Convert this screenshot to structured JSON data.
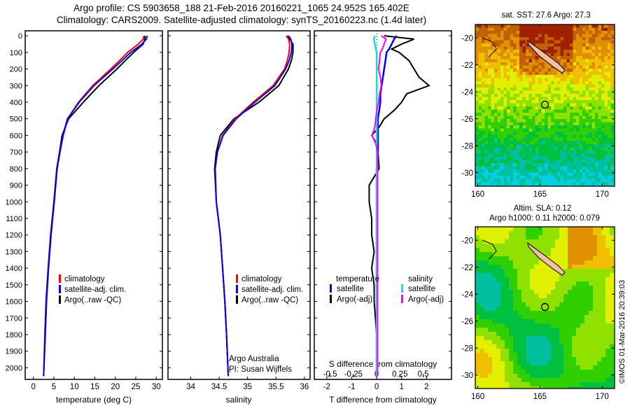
{
  "title_line1": "Argo profile: CS 5903658_188 21-Feb-2016 20160221_1065 24.952S 165.402E",
  "title_line2": "Climatology: CARS2009. Satellite-adjusted climatology: synTS_20160223.nc (1.4d later)",
  "colors": {
    "clim": "#ff0000",
    "sat": "#0000ff",
    "argo": "#000000",
    "sal_sat": "#00e5e5",
    "sal_argo": "#ff00ff"
  },
  "chart_data": [
    {
      "type": "line",
      "name": "temperature",
      "xlabel": "temperature (deg C)",
      "xlim": [
        -2,
        31.5
      ],
      "xticks": [
        0,
        5,
        10,
        15,
        20,
        25,
        30
      ],
      "ylim": [
        2070,
        -30
      ],
      "yticks": [
        0,
        100,
        200,
        300,
        400,
        500,
        600,
        700,
        800,
        900,
        1000,
        1100,
        1200,
        1300,
        1400,
        1500,
        1600,
        1700,
        1800,
        1900,
        2000
      ],
      "depth": [
        0,
        20,
        50,
        100,
        150,
        200,
        300,
        400,
        500,
        600,
        700,
        800,
        1000,
        1200,
        1400,
        1600,
        1800,
        2050
      ],
      "series": [
        {
          "name": "climatology",
          "color": "#ff0000",
          "values": [
            27.0,
            26.8,
            25.6,
            23.0,
            21.0,
            18.9,
            14.5,
            11.0,
            8.4,
            7.3,
            6.5,
            5.8,
            5.1,
            4.3,
            3.7,
            3.2,
            2.9,
            2.5
          ]
        },
        {
          "name": "satellite-adj. clim.",
          "color": "#0000ff",
          "values": [
            27.8,
            27.6,
            26.5,
            23.8,
            21.6,
            19.4,
            14.8,
            11.2,
            8.3,
            7.2,
            6.5,
            5.8,
            5.1,
            4.3,
            3.7,
            3.2,
            2.9,
            2.5
          ]
        },
        {
          "name": "Argo(..raw -QC)",
          "color": "#000000",
          "values": [
            27.3,
            27.2,
            26.8,
            24.5,
            22.4,
            20.4,
            16.0,
            12.2,
            8.6,
            7.0,
            6.4,
            5.7,
            5.0,
            4.2,
            3.6,
            3.1,
            2.8,
            2.5
          ]
        }
      ],
      "legend": [
        "climatology",
        "satellite-adj. clim.",
        "Argo(..raw -QC)"
      ]
    },
    {
      "type": "line",
      "name": "salinity",
      "xlabel": "salinity",
      "xlim": [
        33.6,
        36.1
      ],
      "xticks": [
        34,
        34.5,
        35,
        35.5,
        36
      ],
      "xticklabels": [
        "34",
        "34.5",
        "35",
        "35.5",
        "36"
      ],
      "depth": [
        0,
        20,
        50,
        100,
        150,
        200,
        300,
        400,
        500,
        600,
        700,
        800,
        1000,
        1200,
        1400,
        1600,
        1800,
        2050
      ],
      "series": [
        {
          "name": "climatology",
          "color": "#ff0000",
          "values": [
            35.68,
            35.72,
            35.74,
            35.73,
            35.7,
            35.65,
            35.45,
            35.1,
            34.78,
            34.56,
            34.47,
            34.43,
            34.45,
            34.52,
            34.56,
            34.6,
            34.63,
            34.66
          ]
        },
        {
          "name": "satellite-adj. clim.",
          "color": "#0000ff",
          "values": [
            35.72,
            35.76,
            35.78,
            35.77,
            35.73,
            35.67,
            35.48,
            35.13,
            34.8,
            34.57,
            34.47,
            34.43,
            34.45,
            34.52,
            34.56,
            34.6,
            34.63,
            34.66
          ]
        },
        {
          "name": "Argo(..raw -QC)",
          "color": "#000000",
          "values": [
            35.7,
            35.74,
            35.8,
            35.8,
            35.77,
            35.72,
            35.55,
            35.2,
            34.76,
            34.52,
            34.45,
            34.42,
            34.45,
            34.52,
            34.56,
            34.6,
            34.63,
            34.66
          ]
        }
      ],
      "legend": [
        "climatology",
        "satellite-adj. clim.",
        "Argo(..raw -QC)"
      ],
      "annotation1": "Argo Australia",
      "annotation2": "PI: Susan Wijffels"
    },
    {
      "type": "line",
      "name": "difference",
      "xlabel": "T difference from climatology",
      "xlabel2": "S difference from climatology",
      "xlim_T": [
        -2.5,
        3.0
      ],
      "xticks_T": [
        -2,
        -1,
        0,
        1,
        2
      ],
      "xticks_S": [
        -0.5,
        -0.25,
        0,
        0.25,
        0.5
      ],
      "xticklabels_S": [
        "-0.5",
        "-0.25",
        "0",
        "0.25",
        "0.5"
      ],
      "depth": [
        0,
        20,
        50,
        80,
        100,
        150,
        200,
        250,
        300,
        350,
        400,
        450,
        500,
        550,
        600,
        650,
        700,
        800,
        850,
        900,
        1000,
        1100,
        1200,
        1300,
        1400,
        1500,
        1600,
        1800,
        2050
      ],
      "series": [
        {
          "name": "temperature satellite",
          "color": "#0000ff",
          "values": [
            0.8,
            0.7,
            0.6,
            0.5,
            0.4,
            0.35,
            0.3,
            0.25,
            0.2,
            0.15,
            0.15,
            0.1,
            0.05,
            0.05,
            0.05,
            0.05,
            0.05,
            0.0,
            0.0,
            0.0,
            0.0,
            0.0,
            0.0,
            0.0,
            0.0,
            0.0,
            0.0,
            0.0,
            0.0
          ]
        },
        {
          "name": "temperature Argo(-adj)",
          "color": "#000000",
          "values": [
            0.3,
            1.5,
            1.0,
            0.6,
            0.9,
            1.3,
            1.5,
            1.7,
            2.1,
            1.2,
            1.0,
            0.7,
            0.3,
            0.1,
            -0.2,
            0.0,
            0.05,
            0.1,
            -0.1,
            -0.3,
            -0.3,
            -0.2,
            -0.2,
            -0.1,
            -0.2,
            -0.1,
            -0.1,
            0.0,
            0.0
          ]
        },
        {
          "name": "salinity satellite",
          "color": "#00e5e5",
          "values": [
            -0.02,
            -0.03,
            -0.02,
            -0.01,
            0.0,
            0.0,
            0.0,
            0.0,
            0.0,
            0.0,
            0.0,
            0.0,
            0.0,
            0.0,
            0.0,
            0.0,
            0.0,
            0.0,
            0.0,
            0.0,
            0.0,
            0.0,
            0.0,
            0.0,
            0.0,
            0.0,
            0.0,
            0.0,
            0.0
          ]
        },
        {
          "name": "salinity Argo(-adj)",
          "color": "#ff00ff",
          "values": [
            0.05,
            0.1,
            0.08,
            0.06,
            0.04,
            0.03,
            0.02,
            0.04,
            0.05,
            0.03,
            0.02,
            0.0,
            -0.01,
            -0.02,
            -0.05,
            -0.01,
            0.01,
            0.01,
            0.01,
            0.01,
            0.01,
            0.01,
            0.01,
            0.01,
            0.01,
            0.01,
            0.01,
            0.01,
            0.01
          ]
        }
      ],
      "legend_T_title": "temperature",
      "legend_S_title": "salinity",
      "legend_T": [
        "satellite",
        "Argo(-adj)"
      ],
      "legend_S": [
        "satellite",
        "Argo(-adj)"
      ]
    }
  ],
  "maps": {
    "sst_title": "sat. SST: 27.6 Argo: 27.3",
    "sla_title1": "Altim. SLA: 0.12",
    "sla_title2": "Argo h1000: 0.11 h2000: 0.079",
    "lat_ticks": [
      -20,
      -22,
      -24,
      -26,
      -28,
      -30
    ],
    "lon_ticks": [
      160,
      165,
      170
    ],
    "lon_range": [
      159.8,
      171
    ],
    "lat_range": [
      -19,
      -31
    ],
    "argo_lon": 165.402,
    "argo_lat": -24.952
  },
  "credit": "©IMOS 01-Mar-2016 20:39:03"
}
